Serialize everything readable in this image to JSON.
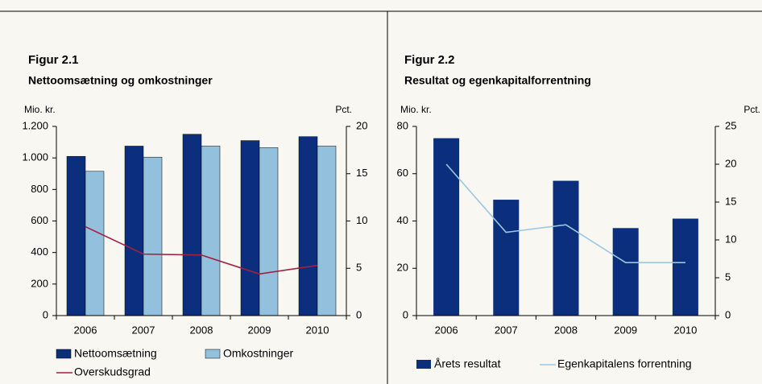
{
  "chart_data": [
    {
      "type": "bar",
      "title": "Figur 2.1",
      "subtitle": "Nettoomsætning og omkostninger",
      "y_label": "Mio. kr.",
      "y2_label": "Pct.",
      "categories": [
        "2006",
        "2007",
        "2008",
        "2009",
        "2010"
      ],
      "series": [
        {
          "name": "Nettoomsætning",
          "color": "#0b2f7d",
          "type": "bar",
          "values": [
            1010,
            1075,
            1150,
            1110,
            1135
          ]
        },
        {
          "name": "Omkostninger",
          "color": "#93c0dd",
          "type": "bar",
          "values": [
            915,
            1005,
            1075,
            1065,
            1075
          ]
        },
        {
          "name": "Overskudsgrad",
          "color": "#a3203e",
          "type": "line",
          "axis": "y2",
          "values": [
            9.4,
            6.5,
            6.4,
            4.4,
            5.3
          ]
        }
      ],
      "ylim": [
        0,
        1200
      ],
      "yticks": [
        0,
        200,
        400,
        600,
        800,
        {
          "value": 1000,
          "label": "1.000"
        },
        {
          "value": 1200,
          "label": "1.200"
        }
      ],
      "y2lim": [
        0,
        20
      ],
      "y2ticks": [
        0,
        5,
        10,
        15,
        20
      ]
    },
    {
      "type": "bar",
      "title": "Figur 2.2",
      "subtitle": "Resultat og egenkapitalforrentning",
      "y_label": "Mio. kr.",
      "y2_label": "Pct.",
      "categories": [
        "2006",
        "2007",
        "2008",
        "2009",
        "2010"
      ],
      "series": [
        {
          "name": "Årets resultat",
          "color": "#0b2f7d",
          "type": "bar",
          "values": [
            75,
            49,
            57,
            37,
            41
          ]
        },
        {
          "name": "Egenkapitalens forrentning",
          "color": "#9cc7e0",
          "type": "line",
          "axis": "y2",
          "values": [
            20,
            11,
            12,
            7,
            7
          ]
        }
      ],
      "ylim": [
        0,
        80
      ],
      "yticks": [
        0,
        20,
        40,
        60,
        80
      ],
      "y2lim": [
        0,
        25
      ],
      "y2ticks": [
        0,
        5,
        10,
        15,
        20,
        25
      ]
    }
  ]
}
